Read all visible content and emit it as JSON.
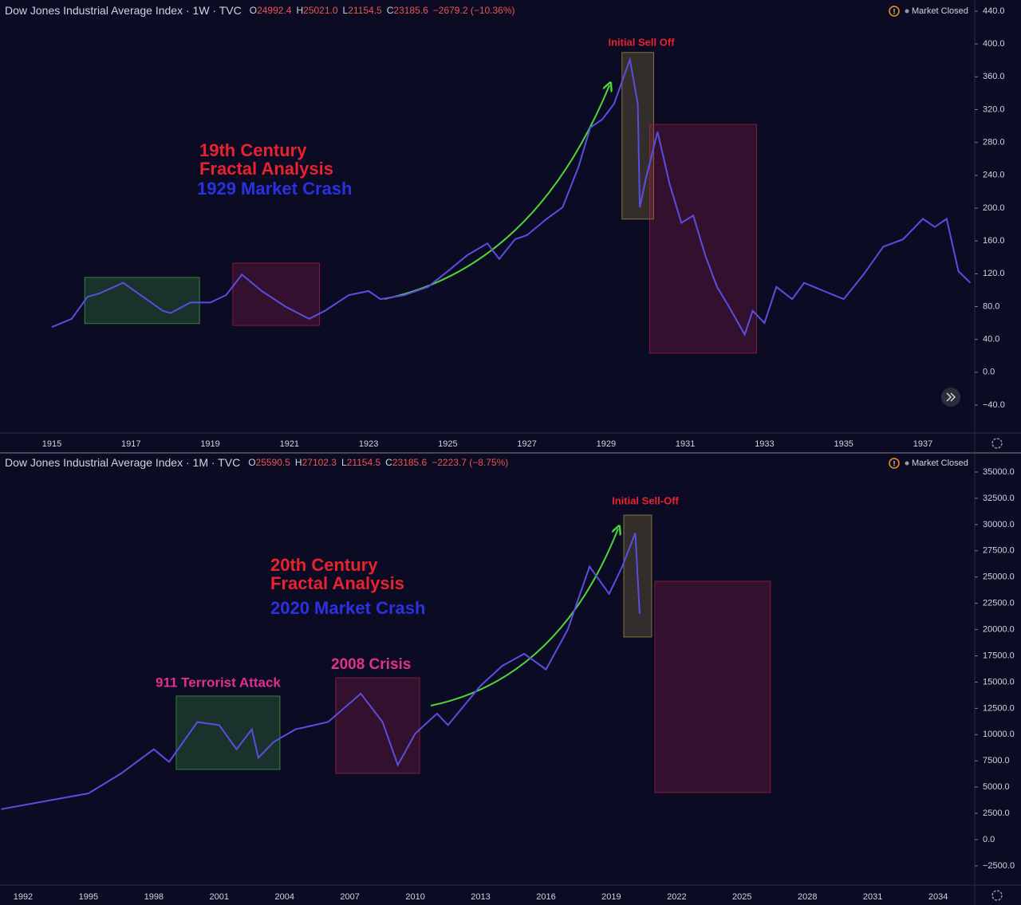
{
  "chart_data": [
    {
      "type": "line",
      "title": "Dow Jones Industrial Average Index · 1W · TVC",
      "ohlc": [
        [
          "O",
          "24992.4"
        ],
        [
          "H",
          "25021.0"
        ],
        [
          "L",
          "21154.5"
        ],
        [
          "C",
          "23185.6"
        ]
      ],
      "change": "−2679.2 (−10.36%)",
      "status": "Market Closed",
      "xlim": [
        1913.69,
        1938.31
      ],
      "ylim": [
        -74,
        453.6
      ],
      "xticks": [
        1915,
        1917,
        1919,
        1921,
        1923,
        1925,
        1927,
        1929,
        1931,
        1933,
        1935,
        1937
      ],
      "yticks": [
        {
          "value": 440,
          "label": "440.0"
        },
        {
          "value": 400,
          "label": "400.0"
        },
        {
          "value": 360,
          "label": "360.0"
        },
        {
          "value": 320,
          "label": "320.0"
        },
        {
          "value": 280,
          "label": "280.0"
        },
        {
          "value": 240,
          "label": "240.0"
        },
        {
          "value": 200,
          "label": "200.0"
        },
        {
          "value": 160,
          "label": "160.0"
        },
        {
          "value": 120,
          "label": "120.0"
        },
        {
          "value": 80,
          "label": "80.0"
        },
        {
          "value": 40,
          "label": "40.0"
        },
        {
          "value": 0,
          "label": "0.0"
        },
        {
          "value": -40,
          "label": "−40.0"
        }
      ],
      "series": [
        {
          "color": "#5a4ee0",
          "x": [
            1915.0,
            1915.5,
            1915.9,
            1916.2,
            1916.8,
            1917.3,
            1917.8,
            1918.0,
            1918.5,
            1919.0,
            1919.4,
            1919.8,
            1920.3,
            1920.9,
            1921.5,
            1921.9,
            1922.5,
            1923.0,
            1923.3,
            1923.9,
            1924.5,
            1925.0,
            1925.5,
            1926.0,
            1926.3,
            1926.7,
            1927.0,
            1927.5,
            1927.9,
            1928.3,
            1928.6,
            1928.9,
            1929.2,
            1929.6,
            1929.8,
            1929.85,
            1930.0,
            1930.3,
            1930.6,
            1930.9,
            1931.2,
            1931.5,
            1931.8,
            1932.1,
            1932.5,
            1932.7,
            1933.0,
            1933.3,
            1933.7,
            1934.0,
            1934.5,
            1935.0,
            1935.5,
            1936.0,
            1936.5,
            1937.0,
            1937.3,
            1937.6,
            1937.9,
            1938.2
          ],
          "values": [
            55,
            65,
            92,
            96,
            109,
            92,
            75,
            72,
            85,
            85,
            94,
            119,
            99,
            80,
            65,
            75,
            94,
            99,
            89,
            94,
            104,
            123,
            143,
            157,
            138,
            162,
            167,
            187,
            201,
            250,
            298,
            308,
            327,
            381,
            327,
            201,
            235,
            293,
            230,
            182,
            191,
            143,
            104,
            80,
            46,
            75,
            60,
            104,
            89,
            109,
            99,
            89,
            119,
            153,
            162,
            187,
            177,
            187,
            123,
            109
          ]
        }
      ],
      "boxes": [
        {
          "x": [
            1915.83,
            1918.73
          ],
          "y": [
            59.3,
            115.6
          ],
          "color": "#3f9a3f"
        },
        {
          "x": [
            1919.57,
            1921.76
          ],
          "y": [
            57,
            133
          ],
          "color": "#9a1f45"
        },
        {
          "x": [
            1929.4,
            1930.2
          ],
          "y": [
            186.6,
            389.7
          ],
          "color": "#9a8a40"
        },
        {
          "x": [
            1930.1,
            1932.8
          ],
          "y": [
            23.3,
            302
          ],
          "color": "#9a1f45"
        }
      ],
      "annotations": [
        {
          "text": "Initial Sell Off",
          "color": "#e8232f"
        },
        {
          "text": "19th Century",
          "color": "#e8232f"
        },
        {
          "text": "Fractal Analysis",
          "color": "#e8232f"
        },
        {
          "text": "1929 Market Crash",
          "color": "#2a32e0"
        }
      ]
    },
    {
      "type": "line",
      "title": "Dow Jones Industrial Average Index · 1M · TVC",
      "ohlc": [
        [
          "O",
          "25590.5"
        ],
        [
          "H",
          "27102.3"
        ],
        [
          "L",
          "21154.5"
        ],
        [
          "C",
          "23185.6"
        ]
      ],
      "change": "−2223.7 (−8.75%)",
      "status": "Market Closed",
      "xlim": [
        1990.94,
        2035.68
      ],
      "ylim": [
        -4328,
        36822
      ],
      "xticks": [
        1992,
        1995,
        1998,
        2001,
        2004,
        2007,
        2010,
        2013,
        2016,
        2019,
        2022,
        2025,
        2028,
        2031,
        2034
      ],
      "yticks": [
        {
          "value": 35000,
          "label": "35000.0"
        },
        {
          "value": 32500,
          "label": "32500.0"
        },
        {
          "value": 30000,
          "label": "30000.0"
        },
        {
          "value": 27500,
          "label": "27500.0"
        },
        {
          "value": 25000,
          "label": "25000.0"
        },
        {
          "value": 22500,
          "label": "22500.0"
        },
        {
          "value": 20000,
          "label": "20000.0"
        },
        {
          "value": 17500,
          "label": "17500.0"
        },
        {
          "value": 15000,
          "label": "15000.0"
        },
        {
          "value": 12500,
          "label": "12500.0"
        },
        {
          "value": 10000,
          "label": "10000.0"
        },
        {
          "value": 7500,
          "label": "7500.0"
        },
        {
          "value": 5000,
          "label": "5000.0"
        },
        {
          "value": 2500,
          "label": "2500.0"
        },
        {
          "value": 0,
          "label": "0.0"
        },
        {
          "value": -2500,
          "label": "−2500.0"
        }
      ],
      "series": [
        {
          "color": "#5a4ee0",
          "x": [
            1991,
            1993,
            1995,
            1996.5,
            1998,
            1998.7,
            2000,
            2001,
            2001.8,
            2002.5,
            2002.8,
            2003.5,
            2004.5,
            2006,
            2007.5,
            2008.5,
            2009.2,
            2010,
            2011,
            2011.5,
            2013,
            2014,
            2015,
            2016,
            2017,
            2018,
            2018.9,
            2019.5,
            2020.1,
            2020.3
          ],
          "values": [
            2900,
            3650,
            4400,
            6300,
            8600,
            7400,
            11200,
            10900,
            8600,
            10500,
            7800,
            9300,
            10500,
            11200,
            13900,
            11200,
            7100,
            10100,
            12000,
            10900,
            14650,
            16550,
            17700,
            16200,
            20000,
            26000,
            23400,
            26000,
            29200,
            21500
          ]
        }
      ],
      "boxes": [
        {
          "x": [
            1999.03,
            2003.79
          ],
          "y": [
            6680,
            13670
          ],
          "color": "#3f9a3f"
        },
        {
          "x": [
            2006.35,
            2010.2
          ],
          "y": [
            6300,
            15410
          ],
          "color": "#9a1f45"
        },
        {
          "x": [
            2019.57,
            2020.85
          ],
          "y": [
            19290,
            30900
          ],
          "color": "#9a8a40"
        },
        {
          "x": [
            2021.0,
            2026.3
          ],
          "y": [
            4480,
            24600
          ],
          "color": "#9a1f45"
        }
      ],
      "annotations": [
        {
          "text": "Initial Sell-Off",
          "color": "#e8232f"
        },
        {
          "text": "20th Century",
          "color": "#e8232f"
        },
        {
          "text": "Fractal Analysis",
          "color": "#e8232f"
        },
        {
          "text": "2020 Market Crash",
          "color": "#2a32e0"
        },
        {
          "text": "911 Terrorist Attack",
          "color": "#e0318f"
        },
        {
          "text": "2008 Crisis",
          "color": "#e0318f"
        }
      ]
    }
  ]
}
